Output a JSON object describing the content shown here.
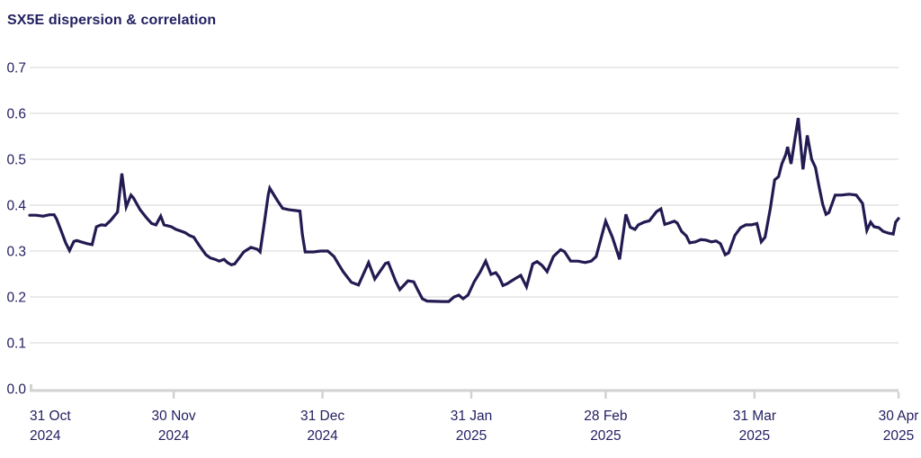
{
  "title": "SX5E dispersion & correlation",
  "colors": {
    "line": "#221b52",
    "text": "#232061",
    "gridline": "#e3e3e3",
    "axis": "#d2d2d2",
    "background": "#ffffff"
  },
  "chart_data": {
    "type": "line",
    "title": "SX5E dispersion & correlation",
    "legend": "none",
    "grid": "horizontal",
    "x_axis": {
      "unit": "days since 2024-10-31",
      "start_date": "2024-10-31",
      "end_date": "2025-04-30",
      "total_days": 181,
      "ticks": [
        {
          "day": 0,
          "label": "31 Oct",
          "year": "2024"
        },
        {
          "day": 30,
          "label": "30 Nov",
          "year": "2024"
        },
        {
          "day": 61,
          "label": "31 Dec",
          "year": "2024"
        },
        {
          "day": 92,
          "label": "31 Jan",
          "year": "2025"
        },
        {
          "day": 120,
          "label": "28 Feb",
          "year": "2025"
        },
        {
          "day": 151,
          "label": "31 Mar",
          "year": "2025"
        },
        {
          "day": 181,
          "label": "30 Apr",
          "year": "2025"
        }
      ]
    },
    "y_axis": {
      "min": 0.0,
      "max": 0.7,
      "tick_step": 0.1,
      "ticks": [
        {
          "value": 0.0,
          "label": "0.0"
        },
        {
          "value": 0.1,
          "label": "0.1"
        },
        {
          "value": 0.2,
          "label": "0.2"
        },
        {
          "value": 0.3,
          "label": "0.3"
        },
        {
          "value": 0.4,
          "label": "0.4"
        },
        {
          "value": 0.5,
          "label": "0.5"
        },
        {
          "value": 0.6,
          "label": "0.6"
        },
        {
          "value": 0.7,
          "label": "0.7"
        }
      ]
    },
    "series": [
      {
        "name": "SX5E dispersion & correlation",
        "color": "#221b52",
        "points": [
          [
            0,
            0.378
          ],
          [
            1.3,
            0.378
          ],
          [
            2.8,
            0.376
          ],
          [
            4.1,
            0.379
          ],
          [
            5.1,
            0.379
          ],
          [
            5.6,
            0.37
          ],
          [
            6.6,
            0.343
          ],
          [
            7.5,
            0.318
          ],
          [
            8.3,
            0.301
          ],
          [
            9.2,
            0.321
          ],
          [
            9.8,
            0.323
          ],
          [
            10.7,
            0.32
          ],
          [
            12,
            0.316
          ],
          [
            13,
            0.314
          ],
          [
            13.9,
            0.353
          ],
          [
            14.9,
            0.357
          ],
          [
            15.8,
            0.356
          ],
          [
            16.9,
            0.367
          ],
          [
            18.3,
            0.385
          ],
          [
            19.2,
            0.469
          ],
          [
            20.1,
            0.396
          ],
          [
            21.1,
            0.422
          ],
          [
            21.6,
            0.416
          ],
          [
            23,
            0.39
          ],
          [
            24.3,
            0.373
          ],
          [
            25.4,
            0.36
          ],
          [
            26.3,
            0.357
          ],
          [
            27.3,
            0.376
          ],
          [
            28,
            0.357
          ],
          [
            29.5,
            0.353
          ],
          [
            30.5,
            0.347
          ],
          [
            31.4,
            0.344
          ],
          [
            32.4,
            0.34
          ],
          [
            33.3,
            0.334
          ],
          [
            34.2,
            0.33
          ],
          [
            35.2,
            0.314
          ],
          [
            36.7,
            0.292
          ],
          [
            37.6,
            0.285
          ],
          [
            38.6,
            0.282
          ],
          [
            39.5,
            0.278
          ],
          [
            40.5,
            0.282
          ],
          [
            41.2,
            0.275
          ],
          [
            42,
            0.27
          ],
          [
            42.7,
            0.272
          ],
          [
            44.6,
            0.298
          ],
          [
            46.1,
            0.308
          ],
          [
            47.4,
            0.304
          ],
          [
            48,
            0.298
          ],
          [
            48.9,
            0.363
          ],
          [
            49.7,
            0.422
          ],
          [
            50,
            0.437
          ],
          [
            51.6,
            0.41
          ],
          [
            52.7,
            0.393
          ],
          [
            54,
            0.39
          ],
          [
            56.3,
            0.387
          ],
          [
            56.8,
            0.337
          ],
          [
            57.4,
            0.298
          ],
          [
            59.1,
            0.298
          ],
          [
            60.6,
            0.3
          ],
          [
            62.1,
            0.3
          ],
          [
            63.4,
            0.288
          ],
          [
            64.3,
            0.272
          ],
          [
            65.3,
            0.255
          ],
          [
            67,
            0.232
          ],
          [
            68.5,
            0.226
          ],
          [
            70.6,
            0.275
          ],
          [
            71.9,
            0.239
          ],
          [
            74.1,
            0.273
          ],
          [
            74.7,
            0.275
          ],
          [
            76.2,
            0.235
          ],
          [
            77.1,
            0.216
          ],
          [
            78.8,
            0.235
          ],
          [
            80,
            0.233
          ],
          [
            80.9,
            0.214
          ],
          [
            81.8,
            0.196
          ],
          [
            82.8,
            0.191
          ],
          [
            86,
            0.19
          ],
          [
            87.3,
            0.19
          ],
          [
            88.4,
            0.2
          ],
          [
            89.4,
            0.204
          ],
          [
            90.3,
            0.196
          ],
          [
            91.3,
            0.204
          ],
          [
            92.6,
            0.233
          ],
          [
            93.9,
            0.255
          ],
          [
            95,
            0.278
          ],
          [
            96.1,
            0.249
          ],
          [
            97.1,
            0.253
          ],
          [
            97.8,
            0.243
          ],
          [
            98.6,
            0.225
          ],
          [
            99.5,
            0.229
          ],
          [
            101,
            0.239
          ],
          [
            102.3,
            0.247
          ],
          [
            103.5,
            0.222
          ],
          [
            104.8,
            0.272
          ],
          [
            105.7,
            0.277
          ],
          [
            106.7,
            0.269
          ],
          [
            107.8,
            0.255
          ],
          [
            109.1,
            0.288
          ],
          [
            110.6,
            0.303
          ],
          [
            111.4,
            0.299
          ],
          [
            112.7,
            0.278
          ],
          [
            114.2,
            0.278
          ],
          [
            115.7,
            0.275
          ],
          [
            117,
            0.278
          ],
          [
            118,
            0.288
          ],
          [
            120,
            0.365
          ],
          [
            121.4,
            0.33
          ],
          [
            122.9,
            0.282
          ],
          [
            124.2,
            0.38
          ],
          [
            125.1,
            0.352
          ],
          [
            126.1,
            0.347
          ],
          [
            126.8,
            0.357
          ],
          [
            128,
            0.363
          ],
          [
            129.1,
            0.366
          ],
          [
            130.6,
            0.386
          ],
          [
            131.5,
            0.392
          ],
          [
            132.3,
            0.358
          ],
          [
            133.2,
            0.361
          ],
          [
            134.3,
            0.365
          ],
          [
            134.9,
            0.361
          ],
          [
            135.8,
            0.343
          ],
          [
            136.8,
            0.333
          ],
          [
            137.5,
            0.318
          ],
          [
            138.7,
            0.32
          ],
          [
            139.8,
            0.325
          ],
          [
            140.9,
            0.324
          ],
          [
            142,
            0.32
          ],
          [
            143,
            0.322
          ],
          [
            143.9,
            0.316
          ],
          [
            144.9,
            0.292
          ],
          [
            145.6,
            0.296
          ],
          [
            146.9,
            0.334
          ],
          [
            148.1,
            0.351
          ],
          [
            149.2,
            0.357
          ],
          [
            150.3,
            0.357
          ],
          [
            151.5,
            0.36
          ],
          [
            152.4,
            0.32
          ],
          [
            153.2,
            0.33
          ],
          [
            154.3,
            0.393
          ],
          [
            155.2,
            0.455
          ],
          [
            156,
            0.462
          ],
          [
            156.7,
            0.49
          ],
          [
            157.5,
            0.51
          ],
          [
            157.9,
            0.527
          ],
          [
            158.6,
            0.49
          ],
          [
            160.1,
            0.59
          ],
          [
            161.1,
            0.478
          ],
          [
            162,
            0.552
          ],
          [
            162.9,
            0.5
          ],
          [
            163.7,
            0.482
          ],
          [
            164.4,
            0.443
          ],
          [
            165.2,
            0.402
          ],
          [
            165.9,
            0.38
          ],
          [
            166.5,
            0.384
          ],
          [
            167.8,
            0.422
          ],
          [
            169.1,
            0.422
          ],
          [
            170.7,
            0.424
          ],
          [
            172.2,
            0.422
          ],
          [
            173.5,
            0.404
          ],
          [
            174.4,
            0.345
          ],
          [
            175.2,
            0.363
          ],
          [
            175.9,
            0.353
          ],
          [
            176.9,
            0.351
          ],
          [
            177.8,
            0.343
          ],
          [
            178.9,
            0.339
          ],
          [
            179.9,
            0.337
          ],
          [
            180.4,
            0.363
          ],
          [
            181,
            0.371
          ]
        ]
      }
    ]
  }
}
